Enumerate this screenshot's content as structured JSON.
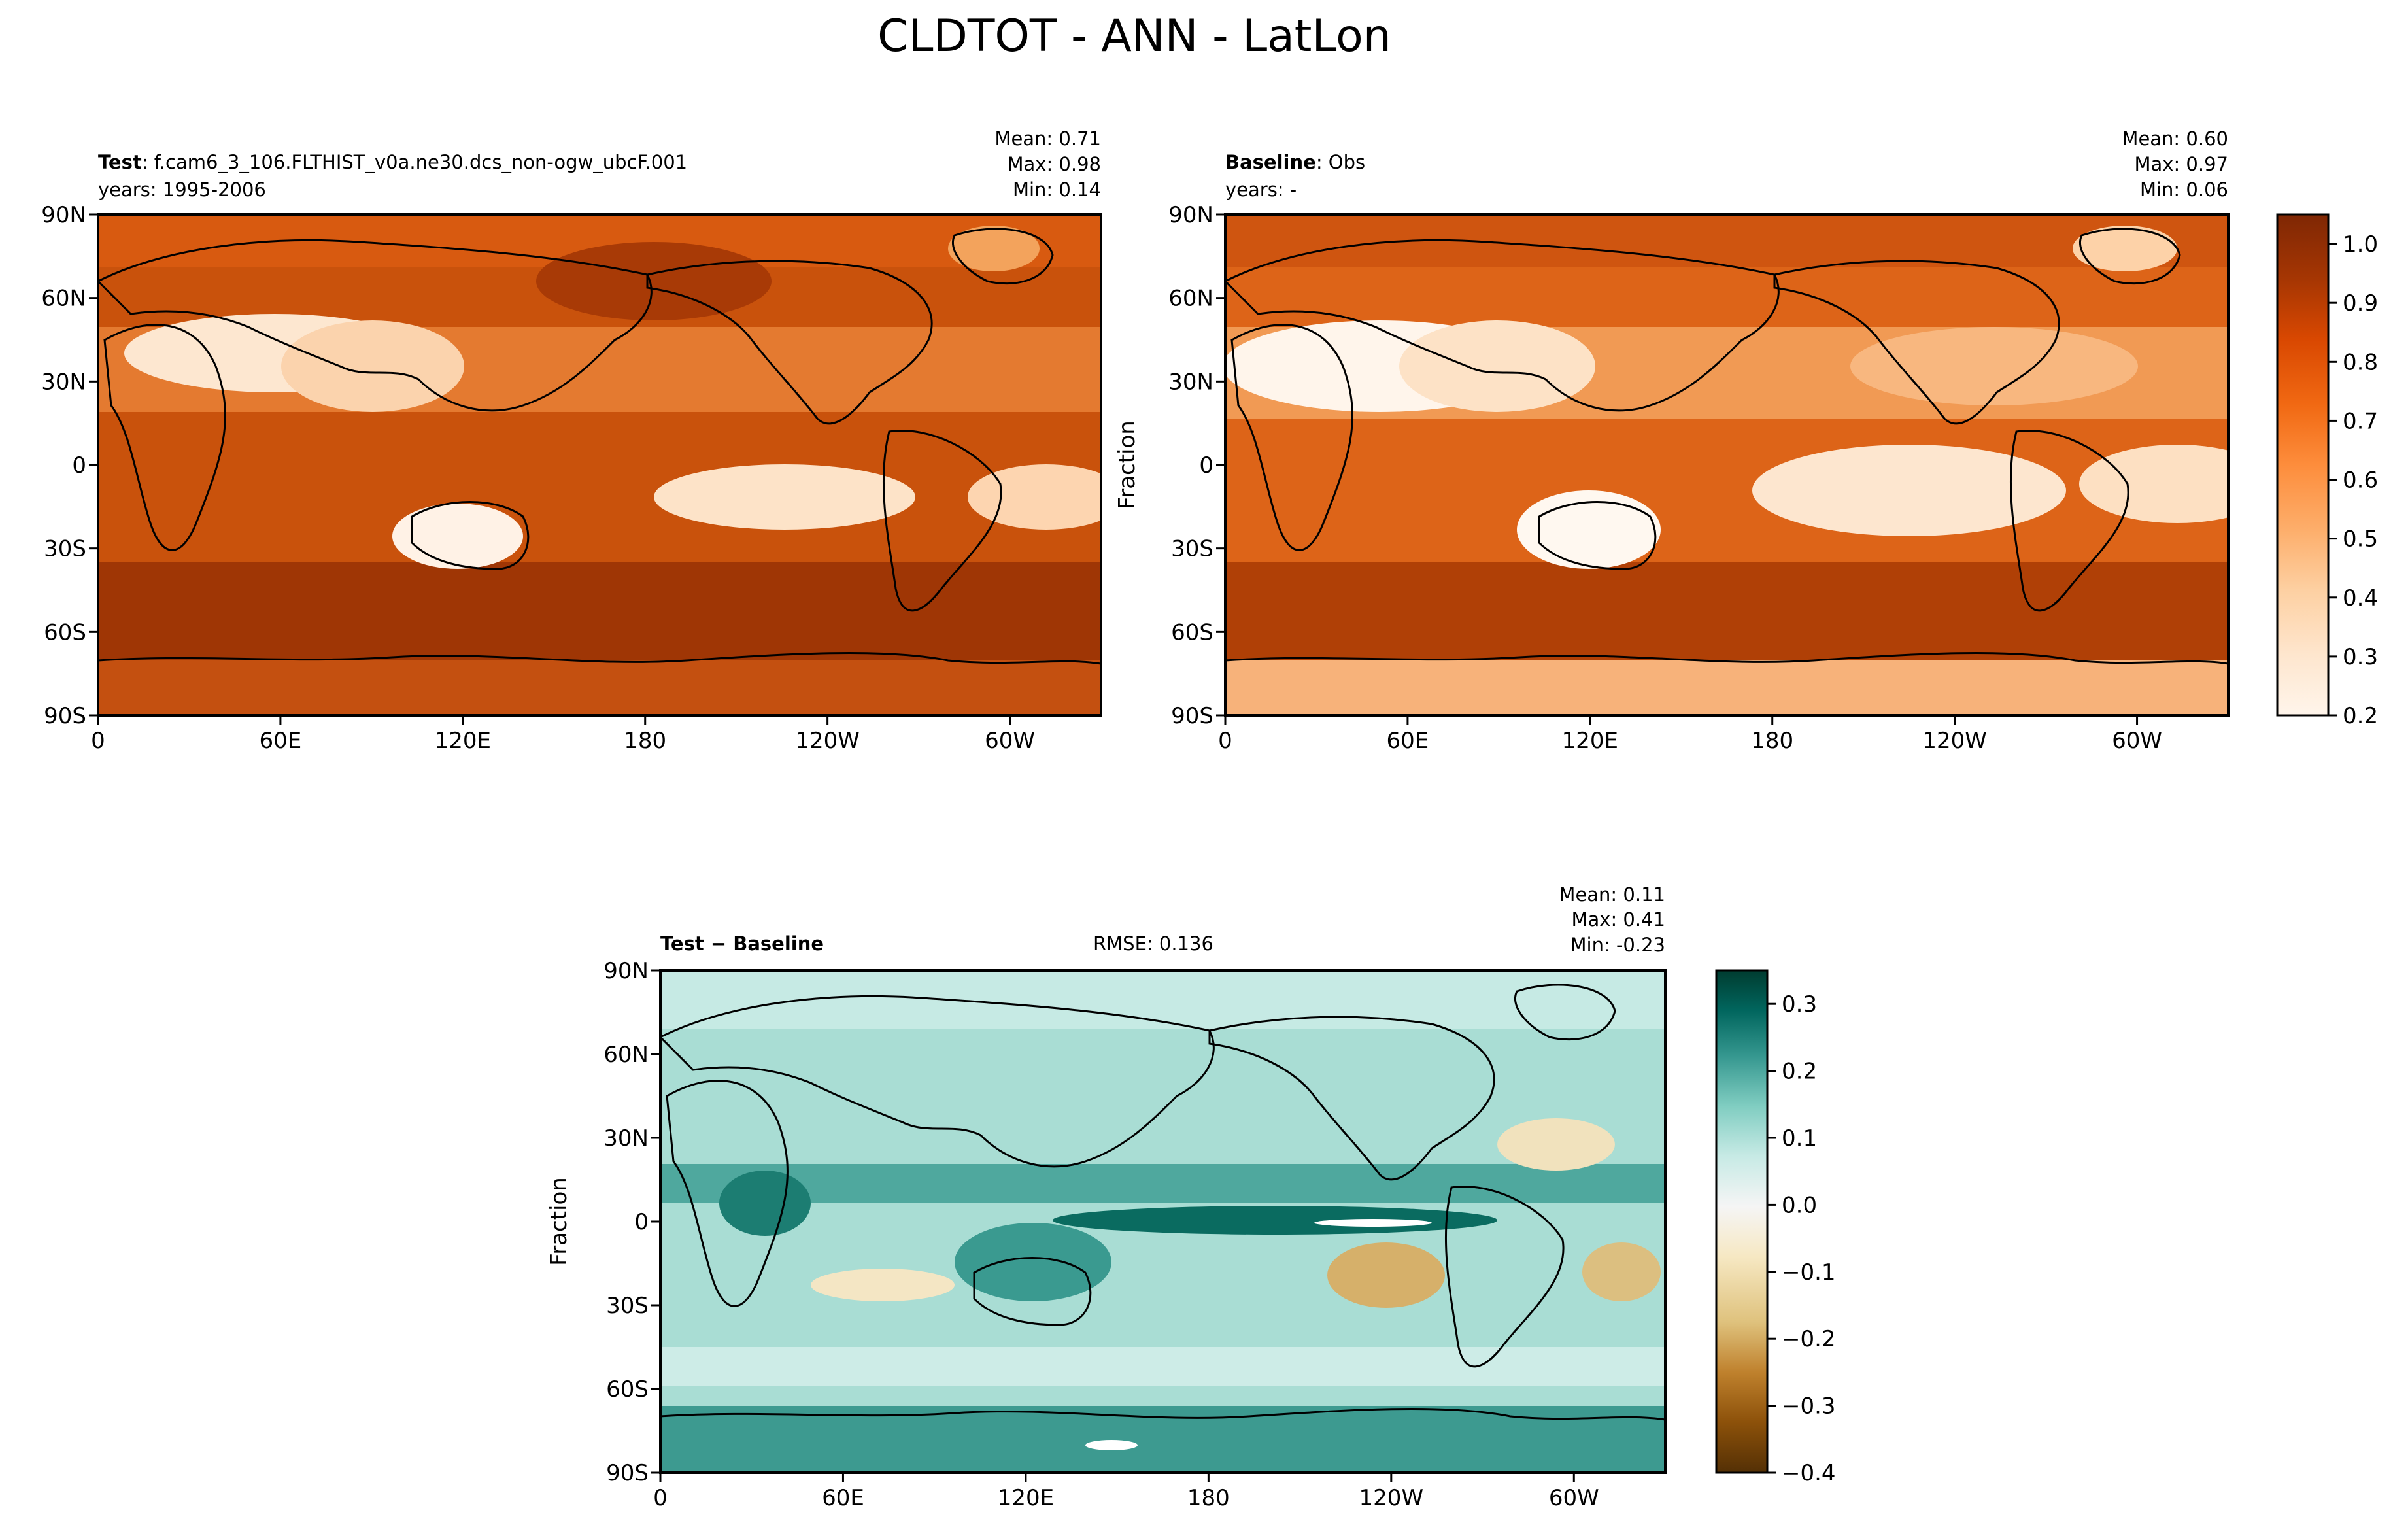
{
  "title": "CLDTOT - ANN - LatLon",
  "colors": {
    "oranges": [
      "#fff5eb",
      "#fee6ce",
      "#fdd0a2",
      "#fdae6b",
      "#fd8d3c",
      "#f16913",
      "#d94801",
      "#a63603",
      "#7f2704"
    ],
    "brbg": [
      "#543005",
      "#8c510a",
      "#bf812d",
      "#dfc27d",
      "#f6e8c3",
      "#f5f5f5",
      "#c7eae5",
      "#80cdc1",
      "#35978f",
      "#01665e",
      "#003c30"
    ]
  },
  "chart_data": [
    {
      "type": "heatmap",
      "panel": "test",
      "label_bold": "Test",
      "label_text": ": f.cam6_3_106.FLTHIST_v0a.ne30.dcs_non-ogw_ubcF.001",
      "years": "years: 1995-2006",
      "stats": {
        "mean": "Mean:  0.71",
        "max": "Max:  0.98",
        "min": "Min:  0.14"
      },
      "stat_values": {
        "mean": 0.71,
        "max": 0.98,
        "min": 0.14
      },
      "xticks": [
        "0",
        "60E",
        "120E",
        "180",
        "120W",
        "60W"
      ],
      "yticks": [
        "90N",
        "60N",
        "30N",
        "0",
        "30S",
        "60S",
        "90S"
      ],
      "colormap": "Oranges",
      "vmin": 0.2,
      "vmax": 1.05
    },
    {
      "type": "heatmap",
      "panel": "baseline",
      "label_bold": "Baseline",
      "label_text": ": Obs",
      "years": "years: -",
      "stats": {
        "mean": "Mean:  0.60",
        "max": "Max:  0.97",
        "min": "Min:  0.06"
      },
      "stat_values": {
        "mean": 0.6,
        "max": 0.97,
        "min": 0.06
      },
      "xticks": [
        "0",
        "60E",
        "120E",
        "180",
        "120W",
        "60W"
      ],
      "yticks": [
        "90N",
        "60N",
        "30N",
        "0",
        "30S",
        "60S",
        "90S"
      ],
      "ylabel": "Fraction",
      "colormap": "Oranges",
      "colorbar_ticks": [
        "1.0",
        "0.9",
        "0.8",
        "0.7",
        "0.6",
        "0.5",
        "0.4",
        "0.3",
        "0.2"
      ],
      "colorbar_range": [
        0.2,
        1.05
      ],
      "vmin": 0.2,
      "vmax": 1.05
    },
    {
      "type": "heatmap",
      "panel": "diff",
      "label_bold": "Test − Baseline",
      "rmse": "RMSE: 0.136",
      "rmse_value": 0.136,
      "stats": {
        "mean": "Mean:  0.11",
        "max": "Max:  0.41",
        "min": "Min: -0.23"
      },
      "stat_values": {
        "mean": 0.11,
        "max": 0.41,
        "min": -0.23
      },
      "xticks": [
        "0",
        "60E",
        "120E",
        "180",
        "120W",
        "60W"
      ],
      "yticks": [
        "90N",
        "60N",
        "30N",
        "0",
        "30S",
        "60S",
        "90S"
      ],
      "ylabel": "Fraction",
      "colormap": "BrBG",
      "colorbar_ticks": [
        "0.3",
        "0.2",
        "0.1",
        "0.0",
        "−0.1",
        "−0.2",
        "−0.3",
        "−0.4"
      ],
      "colorbar_range": [
        -0.4,
        0.35
      ],
      "vmin": -0.4,
      "vmax": 0.35
    }
  ]
}
